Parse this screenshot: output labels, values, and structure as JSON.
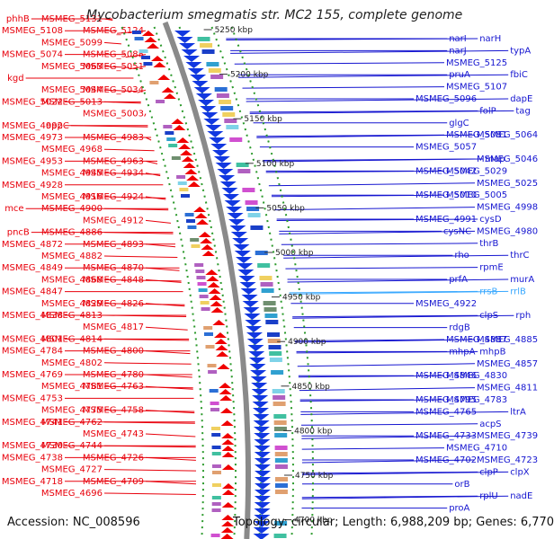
{
  "organism": "Mycobacterium smegmatis str. MC2 155, complete genome",
  "footer": {
    "accession": "Accession: NC_008596",
    "topology": "Topology: circular; Length: 6,988,209 bp; Genes: 6,770"
  },
  "colors": {
    "left_label": "#e8000b",
    "right_label": "#1515d0",
    "light_label": "#38a8ff",
    "backbone": "#8a8a8a",
    "dotted_guide": "#2c9a2c",
    "tick_text": "#222222"
  },
  "ticks": [
    "5250 kbp",
    "5200 kbp",
    "5150 kbp",
    "5100 kbp",
    "5050 kbp",
    "5000 kbp",
    "4950 kbp",
    "4900 kbp",
    "4850 kbp",
    "4800 kbp",
    "4750 kbp",
    "4700 kbp"
  ],
  "left_labels": [
    "phhB",
    "MSMEG_5131",
    "MSMEG_5124",
    "MSMEG_5108",
    "MSMEG_5099",
    "MSMEG_5088",
    "MSMEG_5074",
    "MSMEG_5063",
    "MSMEG_5051",
    "kgd",
    "MSMEG_5044",
    "MSMEG_5034",
    "MSMEG_5022",
    "MSMEG_5013",
    "MSMEG_5003",
    "MSMEG_4992",
    "oppC",
    "MSMEG_4983",
    "MSMEG_4973",
    "MSMEG_4968",
    "MSMEG_4963",
    "MSMEG_4953",
    "MSMEG_4945",
    "MSMEG_4934",
    "MSMEG_4928",
    "MSMEG_4916",
    "MSMEG_4924",
    "mce",
    "MSMEG_4900",
    "MSMEG_4912",
    "pncB",
    "MSMEG_4886",
    "MSMEG_4893",
    "MSMEG_4872",
    "MSMEG_4882",
    "MSMEG_4870",
    "MSMEG_4849",
    "MSMEG_4868",
    "MSMEG_4848",
    "MSMEG_4847",
    "MSMEG_4829",
    "MSMEG_4826",
    "MSMEG_4838",
    "MSMEG_4813",
    "MSMEG_4817",
    "MSMEG_4801",
    "MSMEG_4814",
    "MSMEG_4800",
    "MSMEG_4784",
    "MSMEG_4802",
    "MSMEG_4780",
    "MSMEG_4769",
    "MSMEG_4781",
    "MSMEG_4763",
    "MSMEG_4753",
    "MSMEG_4775",
    "MSMEG_4758",
    "MSMEG_4741",
    "MSMEG_4762",
    "MSMEG_4743",
    "MSMEG_4730",
    "MSMEG_4744",
    "MSMEG_4726",
    "MSMEG_4738",
    "MSMEG_4727",
    "MSMEG_4709",
    "MSMEG_4718",
    "MSMEG_4696"
  ],
  "right_labels": [
    "narI",
    "narH",
    "typA",
    "narJ",
    "MSMEG_5125",
    "fbiC",
    "pruA",
    "MSMEG_5107",
    "dapE",
    "MSMEG_5096",
    "folP",
    "tag",
    "glgC",
    "MSMEG_5081",
    "MSMEG_5064",
    "MSMEG_5057",
    "map",
    "MSMEG_5046",
    "MSMEG_5042",
    "MSMEG_5029",
    "MSMEG_5025",
    "MSMEG_5010",
    "MSMEG_5005",
    "MSMEG_4998",
    "MSMEG_4991",
    "cysD",
    "MSMEG_4980",
    "cysNC",
    "thrB",
    "thrC",
    "rho",
    "rpmE",
    "murA",
    "prfA",
    "rrsB",
    "rrlB",
    "MSMEG_4922",
    "clpS",
    "rph",
    "rdgB",
    "MSMEG_4887",
    "MSMEG_4885",
    "mhpA",
    "mhpB",
    "MSMEG_4857",
    "MSMEG_4846",
    "MSMEG_4830",
    "MSMEG_4811",
    "MSMEG_4795",
    "MSMEG_4783",
    "ltrA",
    "MSMEG_4765",
    "acpS",
    "MSMEG_4739",
    "MSMEG_4733",
    "MSMEG_4710",
    "MSMEG_4723",
    "MSMEG_4702",
    "clpP",
    "clpX",
    "orB",
    "rplU",
    "nadE",
    "proA"
  ]
}
